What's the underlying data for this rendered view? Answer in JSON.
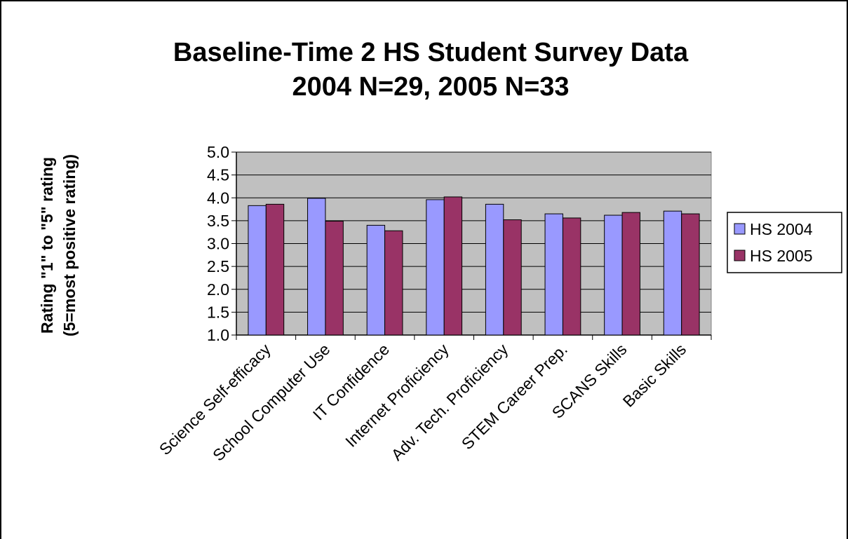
{
  "chart_data": {
    "type": "bar",
    "title": "Baseline-Time 2 HS Student Survey Data",
    "subtitle": "2004 N=29, 2005 N=33",
    "ylabel_line1": "Rating  \"1\" to \"5\" rating",
    "ylabel_line2": "(5=most positive rating)",
    "xlabel": "",
    "ylim": [
      1.0,
      5.0
    ],
    "ytick_step": 0.5,
    "ytick_labels": [
      "1.0",
      "1.5",
      "2.0",
      "2.5",
      "3.0",
      "3.5",
      "4.0",
      "4.5",
      "5.0"
    ],
    "grid": true,
    "legend_position": "right",
    "plot_background": "#c0c0c0",
    "categories": [
      "Science Self-efficacy",
      "School Computer Use",
      "IT Confidence",
      "Internet Proficiency",
      "Adv. Tech. Proficiency",
      "STEM Career Prep.",
      "SCANS Skills",
      "Basic Skills"
    ],
    "series": [
      {
        "name": "HS 2004",
        "color": "#9999ff",
        "values": [
          3.83,
          3.99,
          3.4,
          3.96,
          3.86,
          3.65,
          3.62,
          3.71
        ]
      },
      {
        "name": "HS 2005",
        "color": "#993366",
        "values": [
          3.86,
          3.49,
          3.28,
          4.02,
          3.52,
          3.56,
          3.68,
          3.65
        ]
      }
    ]
  }
}
